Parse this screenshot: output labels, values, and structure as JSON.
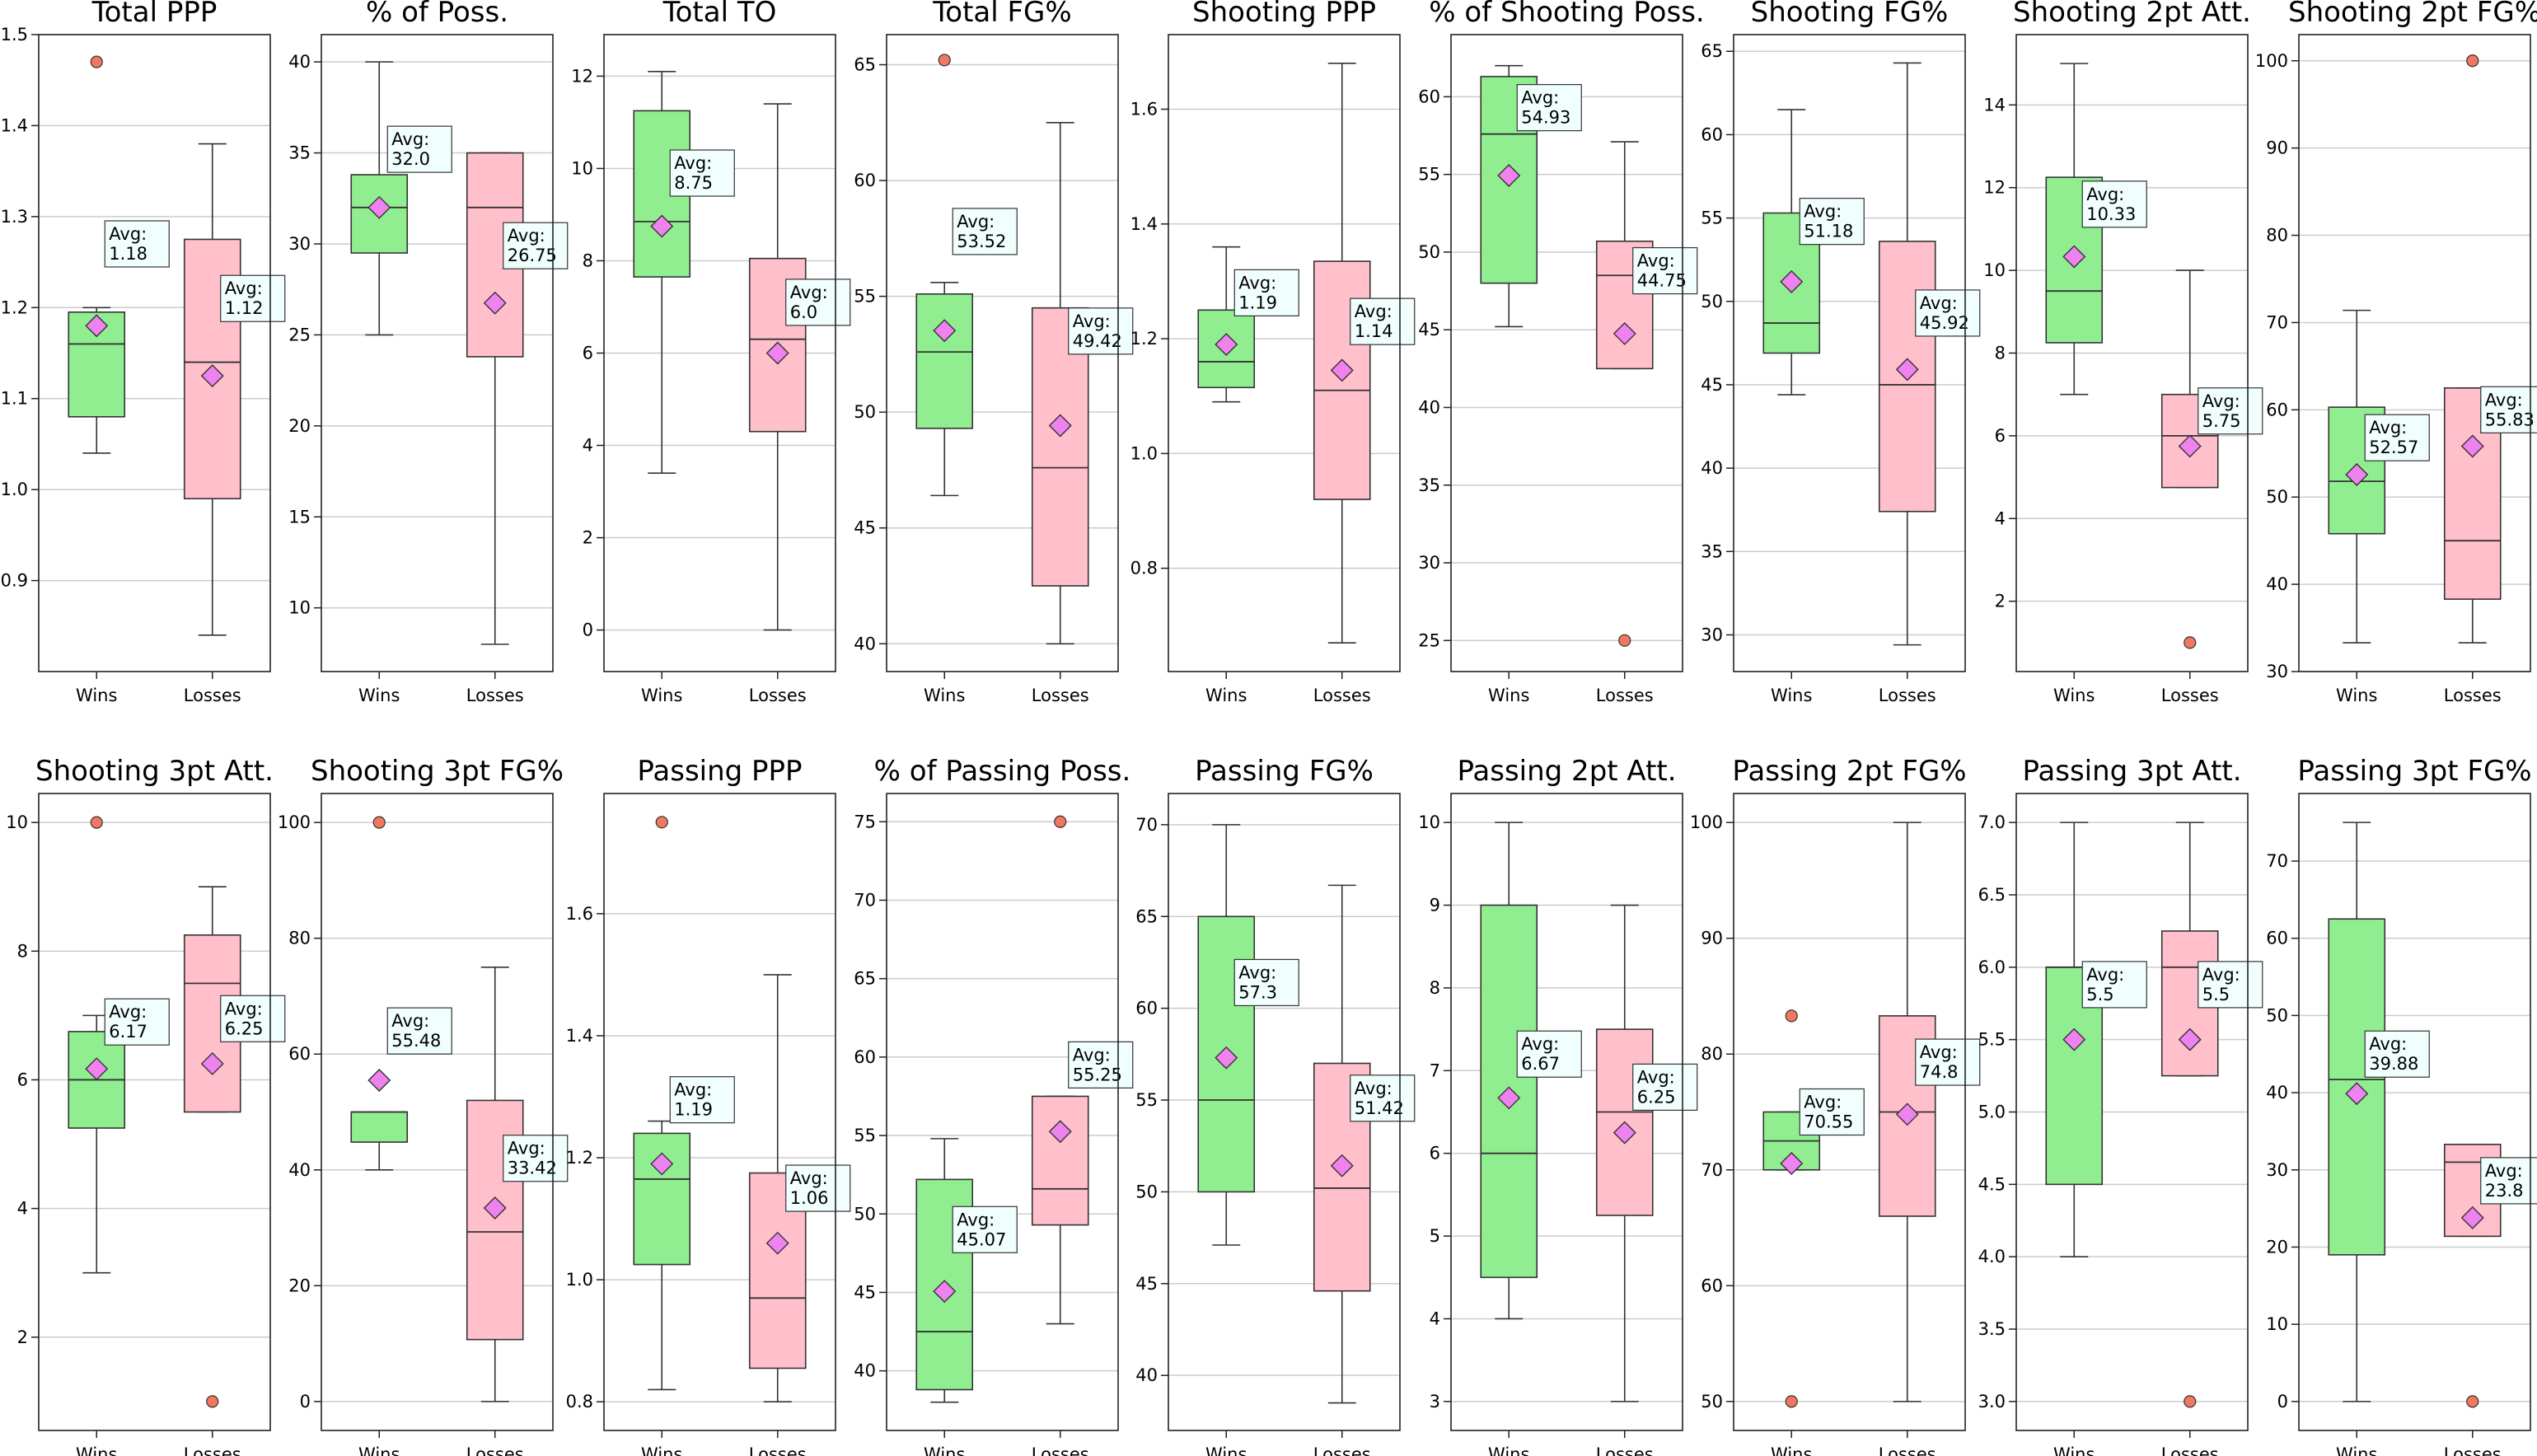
{
  "colors": {
    "wins": "#90ee90",
    "losses": "#ffc0cb",
    "mean": "#ee82ee",
    "outlier": "#f07860",
    "annotation_bg": "#f0fffe",
    "grid": "#cccccc",
    "axis": "#222222"
  },
  "chart_data": [
    {
      "type": "box",
      "title": "Total PPP",
      "categories": [
        "Wins",
        "Losses"
      ],
      "ylim": [
        0.8,
        1.5
      ],
      "yticks": [
        0.9,
        1.0,
        1.1,
        1.2,
        1.3,
        1.4,
        1.5
      ],
      "ytick_labels": [
        "0.9",
        "1.0",
        "1.1",
        "1.2",
        "1.3",
        "1.4",
        "1.5"
      ],
      "grid": true,
      "series": [
        {
          "name": "Wins",
          "whisker_low": 1.04,
          "q1": 1.08,
          "median": 1.16,
          "q3": 1.195,
          "whisker_high": 1.2,
          "mean": 1.18,
          "outliers": [
            1.47
          ],
          "label_anchor": 1.27,
          "label": "Avg:\n1.18"
        },
        {
          "name": "Losses",
          "whisker_low": 0.84,
          "q1": 0.99,
          "median": 1.14,
          "q3": 1.275,
          "whisker_high": 1.38,
          "mean": 1.125,
          "outliers": [],
          "label_anchor": 1.21,
          "label": "Avg:\n1.12"
        }
      ]
    },
    {
      "type": "box",
      "title": "% of Poss.",
      "categories": [
        "Wins",
        "Losses"
      ],
      "ylim": [
        6.5,
        41.5
      ],
      "yticks": [
        10,
        15,
        20,
        25,
        30,
        35,
        40
      ],
      "ytick_labels": [
        "10",
        "15",
        "20",
        "25",
        "30",
        "35",
        "40"
      ],
      "grid": true,
      "series": [
        {
          "name": "Wins",
          "whisker_low": 25,
          "q1": 29.5,
          "median": 32,
          "q3": 33.8,
          "whisker_high": 40,
          "mean": 32,
          "outliers": [],
          "label_anchor": 35.2,
          "label": "Avg:\n32.0"
        },
        {
          "name": "Losses",
          "whisker_low": 8,
          "q1": 23.8,
          "median": 32,
          "q3": 35,
          "whisker_high": 35,
          "mean": 26.75,
          "outliers": [],
          "label_anchor": 29.9,
          "label": "Avg:\n26.75"
        }
      ]
    },
    {
      "type": "box",
      "title": "Total TO",
      "categories": [
        "Wins",
        "Losses"
      ],
      "ylim": [
        -0.9,
        12.9
      ],
      "yticks": [
        0,
        2,
        4,
        6,
        8,
        10,
        12
      ],
      "ytick_labels": [
        "0",
        "2",
        "4",
        "6",
        "8",
        "10",
        "12"
      ],
      "grid": true,
      "series": [
        {
          "name": "Wins",
          "whisker_low": 3.4,
          "q1": 7.65,
          "median": 8.85,
          "q3": 11.25,
          "whisker_high": 12.1,
          "mean": 8.75,
          "outliers": [],
          "label_anchor": 9.9,
          "label": "Avg:\n8.75"
        },
        {
          "name": "Losses",
          "whisker_low": 0,
          "q1": 4.3,
          "median": 6.3,
          "q3": 8.05,
          "whisker_high": 11.4,
          "mean": 6.0,
          "outliers": [],
          "label_anchor": 7.1,
          "label": "Avg:\n6.0"
        }
      ]
    },
    {
      "type": "box",
      "title": "Total FG%",
      "categories": [
        "Wins",
        "Losses"
      ],
      "ylim": [
        38.8,
        66.3
      ],
      "yticks": [
        40,
        45,
        50,
        55,
        60,
        65
      ],
      "ytick_labels": [
        "40",
        "45",
        "50",
        "55",
        "60",
        "65"
      ],
      "grid": true,
      "series": [
        {
          "name": "Wins",
          "whisker_low": 46.4,
          "q1": 49.3,
          "median": 52.6,
          "q3": 55.1,
          "whisker_high": 55.6,
          "mean": 53.52,
          "outliers": [
            65.2
          ],
          "label_anchor": 57.8,
          "label": "Avg:\n53.52"
        },
        {
          "name": "Losses",
          "whisker_low": 40.0,
          "q1": 42.5,
          "median": 47.6,
          "q3": 54.5,
          "whisker_high": 62.5,
          "mean": 49.42,
          "outliers": [],
          "label_anchor": 53.5,
          "label": "Avg:\n49.42"
        }
      ]
    },
    {
      "type": "box",
      "title": "Shooting PPP",
      "categories": [
        "Wins",
        "Losses"
      ],
      "ylim": [
        0.62,
        1.73
      ],
      "yticks": [
        0.8,
        1.0,
        1.2,
        1.4,
        1.6
      ],
      "ytick_labels": [
        "0.8",
        "1.0",
        "1.2",
        "1.4",
        "1.6"
      ],
      "grid": true,
      "series": [
        {
          "name": "Wins",
          "whisker_low": 1.09,
          "q1": 1.115,
          "median": 1.16,
          "q3": 1.25,
          "whisker_high": 1.36,
          "mean": 1.19,
          "outliers": [],
          "label_anchor": 1.28,
          "label": "Avg:\n1.19"
        },
        {
          "name": "Losses",
          "whisker_low": 0.67,
          "q1": 0.92,
          "median": 1.11,
          "q3": 1.335,
          "whisker_high": 1.68,
          "mean": 1.145,
          "outliers": [],
          "label_anchor": 1.23,
          "label": "Avg:\n1.14"
        }
      ]
    },
    {
      "type": "box",
      "title": "% of Shooting Poss.",
      "categories": [
        "Wins",
        "Losses"
      ],
      "ylim": [
        23.0,
        64.0
      ],
      "yticks": [
        25,
        30,
        35,
        40,
        45,
        50,
        55,
        60
      ],
      "ytick_labels": [
        "25",
        "30",
        "35",
        "40",
        "45",
        "50",
        "55",
        "60"
      ],
      "grid": true,
      "series": [
        {
          "name": "Wins",
          "whisker_low": 45.2,
          "q1": 48.0,
          "median": 57.6,
          "q3": 61.3,
          "whisker_high": 62.0,
          "mean": 54.93,
          "outliers": [],
          "label_anchor": 59.3,
          "label": "Avg:\n54.93"
        },
        {
          "name": "Losses",
          "whisker_low": 42.5,
          "q1": 42.5,
          "median": 48.5,
          "q3": 50.7,
          "whisker_high": 57.1,
          "mean": 44.75,
          "outliers": [
            25.0
          ],
          "label_anchor": 48.8,
          "label": "Avg:\n44.75"
        }
      ]
    },
    {
      "type": "box",
      "title": "Shooting FG%",
      "categories": [
        "Wins",
        "Losses"
      ],
      "ylim": [
        27.8,
        66.0
      ],
      "yticks": [
        30,
        35,
        40,
        45,
        50,
        55,
        60,
        65
      ],
      "ytick_labels": [
        "30",
        "35",
        "40",
        "45",
        "50",
        "55",
        "60",
        "65"
      ],
      "grid": true,
      "series": [
        {
          "name": "Wins",
          "whisker_low": 44.4,
          "q1": 46.9,
          "median": 48.7,
          "q3": 55.3,
          "whisker_high": 61.5,
          "mean": 51.18,
          "outliers": [],
          "label_anchor": 54.8,
          "label": "Avg:\n51.18"
        },
        {
          "name": "Losses",
          "whisker_low": 29.4,
          "q1": 37.4,
          "median": 45.0,
          "q3": 53.6,
          "whisker_high": 64.3,
          "mean": 45.92,
          "outliers": [],
          "label_anchor": 49.3,
          "label": "Avg:\n45.92"
        }
      ]
    },
    {
      "type": "box",
      "title": "Shooting 2pt Att.",
      "categories": [
        "Wins",
        "Losses"
      ],
      "ylim": [
        0.3,
        15.7
      ],
      "yticks": [
        2,
        4,
        6,
        8,
        10,
        12,
        14
      ],
      "ytick_labels": [
        "2",
        "4",
        "6",
        "8",
        "10",
        "12",
        "14"
      ],
      "grid": true,
      "series": [
        {
          "name": "Wins",
          "whisker_low": 7,
          "q1": 8.25,
          "median": 9.5,
          "q3": 12.25,
          "whisker_high": 15,
          "mean": 10.33,
          "outliers": [],
          "label_anchor": 11.6,
          "label": "Avg:\n10.33"
        },
        {
          "name": "Losses",
          "whisker_low": 4.75,
          "q1": 4.75,
          "median": 6,
          "q3": 7,
          "whisker_high": 10,
          "mean": 5.75,
          "outliers": [
            1
          ],
          "label_anchor": 6.6,
          "label": "Avg:\n5.75"
        }
      ]
    },
    {
      "type": "box",
      "title": "Shooting 2pt FG%",
      "categories": [
        "Wins",
        "Losses"
      ],
      "ylim": [
        30.0,
        103.0
      ],
      "yticks": [
        30,
        40,
        50,
        60,
        70,
        80,
        90,
        100
      ],
      "ytick_labels": [
        "30",
        "40",
        "50",
        "60",
        "70",
        "80",
        "90",
        "100"
      ],
      "grid": true,
      "series": [
        {
          "name": "Wins",
          "whisker_low": 33.3,
          "q1": 45.8,
          "median": 51.8,
          "q3": 60.3,
          "whisker_high": 71.4,
          "mean": 52.57,
          "outliers": [],
          "label_anchor": 56.8,
          "label": "Avg:\n52.57"
        },
        {
          "name": "Losses",
          "whisker_low": 33.3,
          "q1": 38.3,
          "median": 45.0,
          "q3": 62.5,
          "whisker_high": 62.5,
          "mean": 55.83,
          "outliers": [
            100
          ],
          "label_anchor": 60.0,
          "label": "Avg:\n55.83"
        }
      ]
    },
    {
      "type": "box",
      "title": "Shooting 3pt Att.",
      "categories": [
        "Wins",
        "Losses"
      ],
      "ylim": [
        0.55,
        10.45
      ],
      "yticks": [
        2,
        4,
        6,
        8,
        10
      ],
      "ytick_labels": [
        "2",
        "4",
        "6",
        "8",
        "10"
      ],
      "grid": true,
      "series": [
        {
          "name": "Wins",
          "whisker_low": 3,
          "q1": 5.25,
          "median": 6,
          "q3": 6.75,
          "whisker_high": 7,
          "mean": 6.17,
          "outliers": [
            10
          ],
          "label_anchor": 6.9,
          "label": "Avg:\n6.17"
        },
        {
          "name": "Losses",
          "whisker_low": 5.5,
          "q1": 5.5,
          "median": 7.5,
          "q3": 8.25,
          "whisker_high": 9,
          "mean": 6.25,
          "outliers": [
            1
          ],
          "label_anchor": 6.95,
          "label": "Avg:\n6.25"
        }
      ]
    },
    {
      "type": "box",
      "title": "Shooting 3pt FG%",
      "categories": [
        "Wins",
        "Losses"
      ],
      "ylim": [
        -5.0,
        105.0
      ],
      "yticks": [
        0,
        20,
        40,
        60,
        80,
        100
      ],
      "ytick_labels": [
        "0",
        "20",
        "40",
        "60",
        "80",
        "100"
      ],
      "grid": true,
      "series": [
        {
          "name": "Wins",
          "whisker_low": 40,
          "q1": 44.8,
          "median": 50,
          "q3": 50,
          "whisker_high": 50,
          "mean": 55.48,
          "outliers": [
            100
          ],
          "label_anchor": 64.0,
          "label": "Avg:\n55.48"
        },
        {
          "name": "Losses",
          "whisker_low": 0,
          "q1": 10.7,
          "median": 29.3,
          "q3": 52.0,
          "whisker_high": 75,
          "mean": 33.42,
          "outliers": [],
          "label_anchor": 42.0,
          "label": "Avg:\n33.42"
        }
      ]
    },
    {
      "type": "box",
      "title": "Passing PPP",
      "categories": [
        "Wins",
        "Losses"
      ],
      "ylim": [
        0.753,
        1.797
      ],
      "yticks": [
        0.8,
        1.0,
        1.2,
        1.4,
        1.6
      ],
      "ytick_labels": [
        "0.8",
        "1.0",
        "1.2",
        "1.4",
        "1.6"
      ],
      "grid": true,
      "series": [
        {
          "name": "Wins",
          "whisker_low": 0.82,
          "q1": 1.025,
          "median": 1.165,
          "q3": 1.24,
          "whisker_high": 1.26,
          "mean": 1.19,
          "outliers": [
            1.75
          ],
          "label_anchor": 1.295,
          "label": "Avg:\n1.19"
        },
        {
          "name": "Losses",
          "whisker_low": 0.8,
          "q1": 0.855,
          "median": 0.97,
          "q3": 1.175,
          "whisker_high": 1.5,
          "mean": 1.06,
          "outliers": [],
          "label_anchor": 1.15,
          "label": "Avg:\n1.06"
        }
      ]
    },
    {
      "type": "box",
      "title": "% of Passing Poss.",
      "categories": [
        "Wins",
        "Losses"
      ],
      "ylim": [
        36.2,
        76.8
      ],
      "yticks": [
        40,
        45,
        50,
        55,
        60,
        65,
        70,
        75
      ],
      "ytick_labels": [
        "40",
        "45",
        "50",
        "55",
        "60",
        "65",
        "70",
        "75"
      ],
      "grid": true,
      "series": [
        {
          "name": "Wins",
          "whisker_low": 38.0,
          "q1": 38.8,
          "median": 42.5,
          "q3": 52.2,
          "whisker_high": 54.8,
          "mean": 45.07,
          "outliers": [],
          "label_anchor": 49.0,
          "label": "Avg:\n45.07"
        },
        {
          "name": "Losses",
          "whisker_low": 43.0,
          "q1": 49.3,
          "median": 51.6,
          "q3": 57.5,
          "whisker_high": 57.5,
          "mean": 55.25,
          "outliers": [
            75.0
          ],
          "label_anchor": 59.5,
          "label": "Avg:\n55.25"
        }
      ]
    },
    {
      "type": "box",
      "title": "Passing FG%",
      "categories": [
        "Wins",
        "Losses"
      ],
      "ylim": [
        37.0,
        71.7
      ],
      "yticks": [
        40,
        45,
        50,
        55,
        60,
        65,
        70
      ],
      "ytick_labels": [
        "40",
        "45",
        "50",
        "55",
        "60",
        "65",
        "70"
      ],
      "grid": true,
      "series": [
        {
          "name": "Wins",
          "whisker_low": 47.1,
          "q1": 50.0,
          "median": 55.0,
          "q3": 65.0,
          "whisker_high": 70.0,
          "mean": 57.3,
          "outliers": [],
          "label_anchor": 61.4,
          "label": "Avg:\n57.3"
        },
        {
          "name": "Losses",
          "whisker_low": 38.5,
          "q1": 44.6,
          "median": 50.2,
          "q3": 57.0,
          "whisker_high": 66.7,
          "mean": 51.42,
          "outliers": [],
          "label_anchor": 55.1,
          "label": "Avg:\n51.42"
        }
      ]
    },
    {
      "type": "box",
      "title": "Passing 2pt Att.",
      "categories": [
        "Wins",
        "Losses"
      ],
      "ylim": [
        2.65,
        10.35
      ],
      "yticks": [
        3,
        4,
        5,
        6,
        7,
        8,
        9,
        10
      ],
      "ytick_labels": [
        "3",
        "4",
        "5",
        "6",
        "7",
        "8",
        "9",
        "10"
      ],
      "grid": true,
      "series": [
        {
          "name": "Wins",
          "whisker_low": 4,
          "q1": 4.5,
          "median": 6,
          "q3": 9,
          "whisker_high": 10,
          "mean": 6.67,
          "outliers": [],
          "label_anchor": 7.2,
          "label": "Avg:\n6.67"
        },
        {
          "name": "Losses",
          "whisker_low": 3,
          "q1": 5.25,
          "median": 6.5,
          "q3": 7.5,
          "whisker_high": 9,
          "mean": 6.25,
          "outliers": [],
          "label_anchor": 6.8,
          "label": "Avg:\n6.25"
        }
      ]
    },
    {
      "type": "box",
      "title": "Passing 2pt FG%",
      "categories": [
        "Wins",
        "Losses"
      ],
      "ylim": [
        47.5,
        102.5
      ],
      "yticks": [
        50,
        60,
        70,
        80,
        90,
        100
      ],
      "ytick_labels": [
        "50",
        "60",
        "70",
        "80",
        "90",
        "100"
      ],
      "grid": true,
      "series": [
        {
          "name": "Wins",
          "whisker_low": 70,
          "q1": 70,
          "median": 72.5,
          "q3": 75,
          "whisker_high": 75,
          "mean": 70.55,
          "outliers": [
            83.3,
            50
          ],
          "label_anchor": 75.0,
          "label": "Avg:\n70.55"
        },
        {
          "name": "Losses",
          "whisker_low": 50,
          "q1": 66,
          "median": 75,
          "q3": 83.3,
          "whisker_high": 100,
          "mean": 74.8,
          "outliers": [],
          "label_anchor": 79.3,
          "label": "Avg:\n74.8"
        }
      ]
    },
    {
      "type": "box",
      "title": "Passing 3pt Att.",
      "categories": [
        "Wins",
        "Losses"
      ],
      "ylim": [
        2.8,
        7.2
      ],
      "yticks": [
        3.0,
        3.5,
        4.0,
        4.5,
        5.0,
        5.5,
        6.0,
        6.5,
        7.0
      ],
      "ytick_labels": [
        "3.0",
        "3.5",
        "4.0",
        "4.5",
        "5.0",
        "5.5",
        "6.0",
        "6.5",
        "7.0"
      ],
      "grid": true,
      "series": [
        {
          "name": "Wins",
          "whisker_low": 4,
          "q1": 4.5,
          "median": 6,
          "q3": 6,
          "whisker_high": 7,
          "mean": 5.5,
          "outliers": [],
          "label_anchor": 5.88,
          "label": "Avg:\n5.5"
        },
        {
          "name": "Losses",
          "whisker_low": 5.25,
          "q1": 5.25,
          "median": 6,
          "q3": 6.25,
          "whisker_high": 7,
          "mean": 5.5,
          "outliers": [
            3
          ],
          "label_anchor": 5.88,
          "label": "Avg:\n5.5"
        }
      ]
    },
    {
      "type": "box",
      "title": "Passing 3pt FG%",
      "categories": [
        "Wins",
        "Losses"
      ],
      "ylim": [
        -3.75,
        78.75
      ],
      "yticks": [
        0,
        10,
        20,
        30,
        40,
        50,
        60,
        70
      ],
      "ytick_labels": [
        "0",
        "10",
        "20",
        "30",
        "40",
        "50",
        "60",
        "70"
      ],
      "grid": true,
      "series": [
        {
          "name": "Wins",
          "whisker_low": 0,
          "q1": 19,
          "median": 41.7,
          "q3": 62.5,
          "whisker_high": 75,
          "mean": 39.88,
          "outliers": [],
          "label_anchor": 45.0,
          "label": "Avg:\n39.88"
        },
        {
          "name": "Losses",
          "whisker_low": 21.4,
          "q1": 21.4,
          "median": 31,
          "q3": 33.3,
          "whisker_high": 33.3,
          "mean": 23.8,
          "outliers": [
            0
          ],
          "label_anchor": 28.6,
          "label": "Avg:\n23.8"
        }
      ]
    }
  ]
}
